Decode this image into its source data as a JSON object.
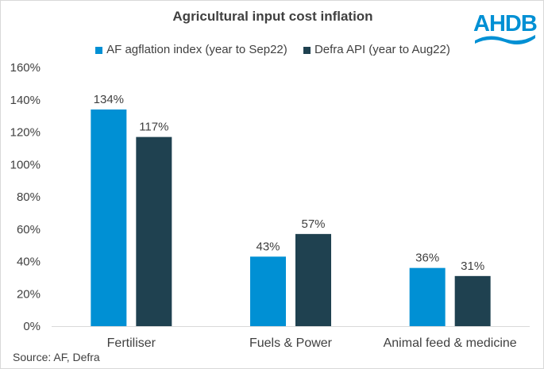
{
  "logo": {
    "text": "AHDB",
    "color": "#0090d4"
  },
  "chart_data": {
    "type": "bar",
    "title": "Agricultural input cost inflation",
    "categories": [
      "Fertiliser",
      "Fuels & Power",
      "Animal feed & medicine"
    ],
    "series": [
      {
        "name": "AF agflation index (year to Sep22)",
        "values": [
          134,
          43,
          36
        ],
        "labels": [
          "134%",
          "43%",
          "36%"
        ],
        "color": "#0090d4"
      },
      {
        "name": "Defra API (year to Aug22)",
        "values": [
          117,
          57,
          31
        ],
        "labels": [
          "117%",
          "57%",
          "31%"
        ],
        "color": "#1f4150"
      }
    ],
    "ylim": [
      0,
      160
    ],
    "yticks": [
      "0%",
      "20%",
      "40%",
      "60%",
      "80%",
      "100%",
      "120%",
      "140%",
      "160%"
    ],
    "legend_position": "top",
    "grid": false,
    "source": "Source: AF, Defra"
  }
}
